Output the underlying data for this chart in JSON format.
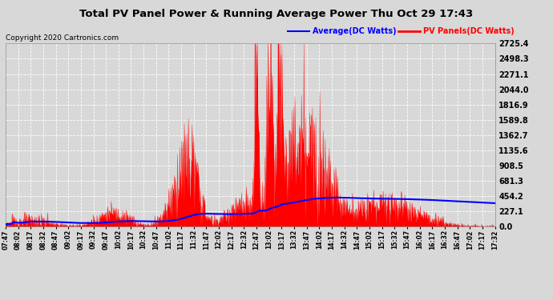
{
  "title": "Total PV Panel Power & Running Average Power Thu Oct 29 17:43",
  "copyright": "Copyright 2020 Cartronics.com",
  "legend_avg": "Average(DC Watts)",
  "legend_pv": "PV Panels(DC Watts)",
  "yticks": [
    0.0,
    227.1,
    454.2,
    681.3,
    908.5,
    1135.6,
    1362.7,
    1589.8,
    1816.9,
    2044.0,
    2271.1,
    2498.3,
    2725.4
  ],
  "ymax": 2725.4,
  "ymin": 0.0,
  "bg_color": "#d8d8d8",
  "plot_bg_color": "#d8d8d8",
  "pv_color": "#ff0000",
  "avg_color": "#0000ff",
  "grid_color": "#ffffff",
  "title_color": "#000000",
  "copyright_color": "#000000",
  "avg_legend_color": "#0000ff",
  "pv_legend_color": "#ff0000",
  "xtick_labels": [
    "07:47",
    "08:02",
    "08:17",
    "08:32",
    "08:47",
    "09:02",
    "09:17",
    "09:32",
    "09:47",
    "10:02",
    "10:17",
    "10:32",
    "10:47",
    "11:02",
    "11:17",
    "11:32",
    "11:47",
    "12:02",
    "12:17",
    "12:32",
    "12:47",
    "13:02",
    "13:17",
    "13:32",
    "13:47",
    "14:02",
    "14:17",
    "14:32",
    "14:47",
    "15:02",
    "15:17",
    "15:32",
    "15:47",
    "16:02",
    "16:17",
    "16:32",
    "16:47",
    "17:02",
    "17:17",
    "17:32"
  ]
}
